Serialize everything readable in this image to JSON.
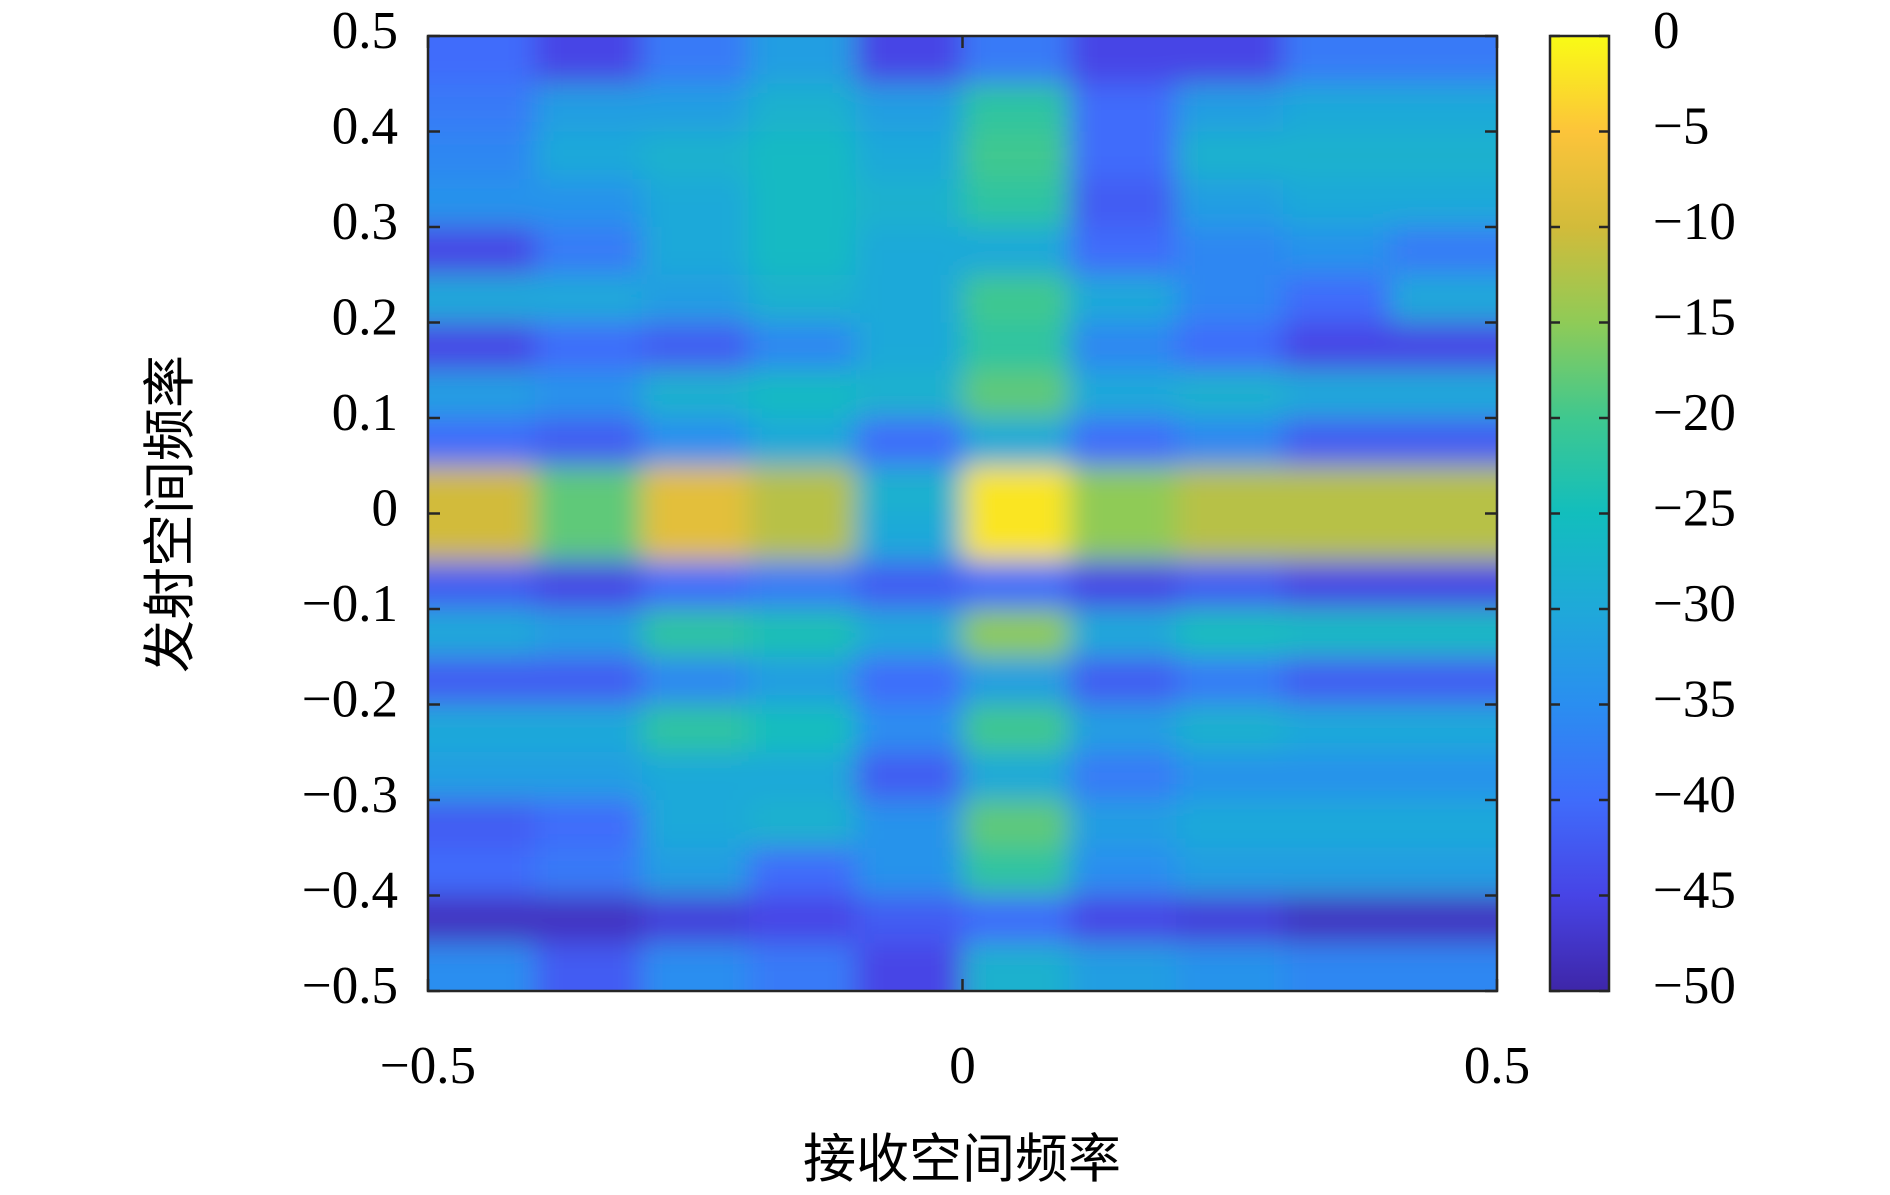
{
  "chart_data": {
    "type": "heatmap",
    "x_label": "接收空间频率",
    "y_label": "发射空间频率",
    "xlim": [
      -0.5,
      0.5
    ],
    "ylim": [
      -0.5,
      0.5
    ],
    "xticks": [
      {
        "value": -0.5,
        "label": "−0.5"
      },
      0,
      0.5
    ],
    "yticks": [
      {
        "value": -0.5,
        "label": "−0.5"
      },
      {
        "value": -0.4,
        "label": "−0.4"
      },
      {
        "value": -0.3,
        "label": "−0.3"
      },
      {
        "value": -0.2,
        "label": "−0.2"
      },
      {
        "value": -0.1,
        "label": "−0.1"
      },
      0,
      0.1,
      0.2,
      0.3,
      0.4,
      0.5
    ],
    "clim": [
      -50,
      0
    ],
    "cticks": [
      {
        "value": -50,
        "label": "−50"
      },
      {
        "value": -45,
        "label": "−45"
      },
      {
        "value": -40,
        "label": "−40"
      },
      {
        "value": -35,
        "label": "−35"
      },
      {
        "value": -30,
        "label": "−30"
      },
      {
        "value": -25,
        "label": "−25"
      },
      {
        "value": -20,
        "label": "−20"
      },
      {
        "value": -15,
        "label": "−15"
      },
      {
        "value": -10,
        "label": "−10"
      },
      {
        "value": -5,
        "label": "−5"
      },
      0
    ],
    "colormap": [
      "#3e26a8",
      "#4744e6",
      "#3f6cfb",
      "#2a8ef0",
      "#1fa9d9",
      "#12bebd",
      "#3fc88f",
      "#8fcb57",
      "#d2bb3a",
      "#fcc43a",
      "#f9fb15"
    ],
    "x": [
      -0.45,
      -0.35,
      -0.25,
      -0.15,
      -0.05,
      0.05,
      0.15,
      0.25,
      0.35,
      0.45
    ],
    "y": [
      0.475,
      0.425,
      0.375,
      0.325,
      0.275,
      0.225,
      0.175,
      0.125,
      0.075,
      0.025,
      -0.025,
      -0.075,
      -0.125,
      -0.175,
      -0.225,
      -0.275,
      -0.325,
      -0.375,
      -0.425,
      -0.475
    ],
    "values": [
      [
        -40,
        -45,
        -38,
        -32,
        -45,
        -38,
        -45,
        -45,
        -38,
        -38
      ],
      [
        -38,
        -32,
        -32,
        -28,
        -32,
        -22,
        -40,
        -32,
        -30,
        -30
      ],
      [
        -36,
        -30,
        -28,
        -26,
        -30,
        -20,
        -40,
        -28,
        -28,
        -28
      ],
      [
        -34,
        -34,
        -30,
        -26,
        -28,
        -22,
        -42,
        -32,
        -30,
        -30
      ],
      [
        -45,
        -38,
        -30,
        -26,
        -30,
        -30,
        -40,
        -36,
        -34,
        -38
      ],
      [
        -30,
        -30,
        -32,
        -28,
        -30,
        -20,
        -30,
        -36,
        -40,
        -30
      ],
      [
        -45,
        -40,
        -42,
        -36,
        -30,
        -22,
        -36,
        -40,
        -45,
        -45
      ],
      [
        -32,
        -34,
        -28,
        -26,
        -28,
        -18,
        -30,
        -28,
        -30,
        -30
      ],
      [
        -40,
        -42,
        -35,
        -30,
        -40,
        -30,
        -40,
        -36,
        -42,
        -42
      ],
      [
        -10,
        -18,
        -8,
        -12,
        -28,
        -2,
        -15,
        -12,
        -12,
        -12
      ],
      [
        -10,
        -18,
        -8,
        -12,
        -30,
        -2,
        -15,
        -12,
        -12,
        -12
      ],
      [
        -42,
        -45,
        -40,
        -38,
        -42,
        -40,
        -45,
        -42,
        -45,
        -45
      ],
      [
        -30,
        -32,
        -22,
        -24,
        -30,
        -15,
        -30,
        -25,
        -26,
        -26
      ],
      [
        -42,
        -42,
        -36,
        -32,
        -40,
        -32,
        -42,
        -38,
        -42,
        -42
      ],
      [
        -30,
        -30,
        -22,
        -25,
        -35,
        -20,
        -32,
        -28,
        -30,
        -30
      ],
      [
        -32,
        -32,
        -30,
        -30,
        -42,
        -30,
        -38,
        -34,
        -34,
        -34
      ],
      [
        -42,
        -40,
        -30,
        -28,
        -34,
        -18,
        -32,
        -30,
        -30,
        -30
      ],
      [
        -40,
        -38,
        -32,
        -40,
        -34,
        -22,
        -35,
        -32,
        -32,
        -32
      ],
      [
        -48,
        -48,
        -46,
        -45,
        -42,
        -40,
        -45,
        -46,
        -48,
        -48
      ],
      [
        -35,
        -42,
        -35,
        -38,
        -45,
        -28,
        -32,
        -34,
        -36,
        -36
      ]
    ]
  }
}
